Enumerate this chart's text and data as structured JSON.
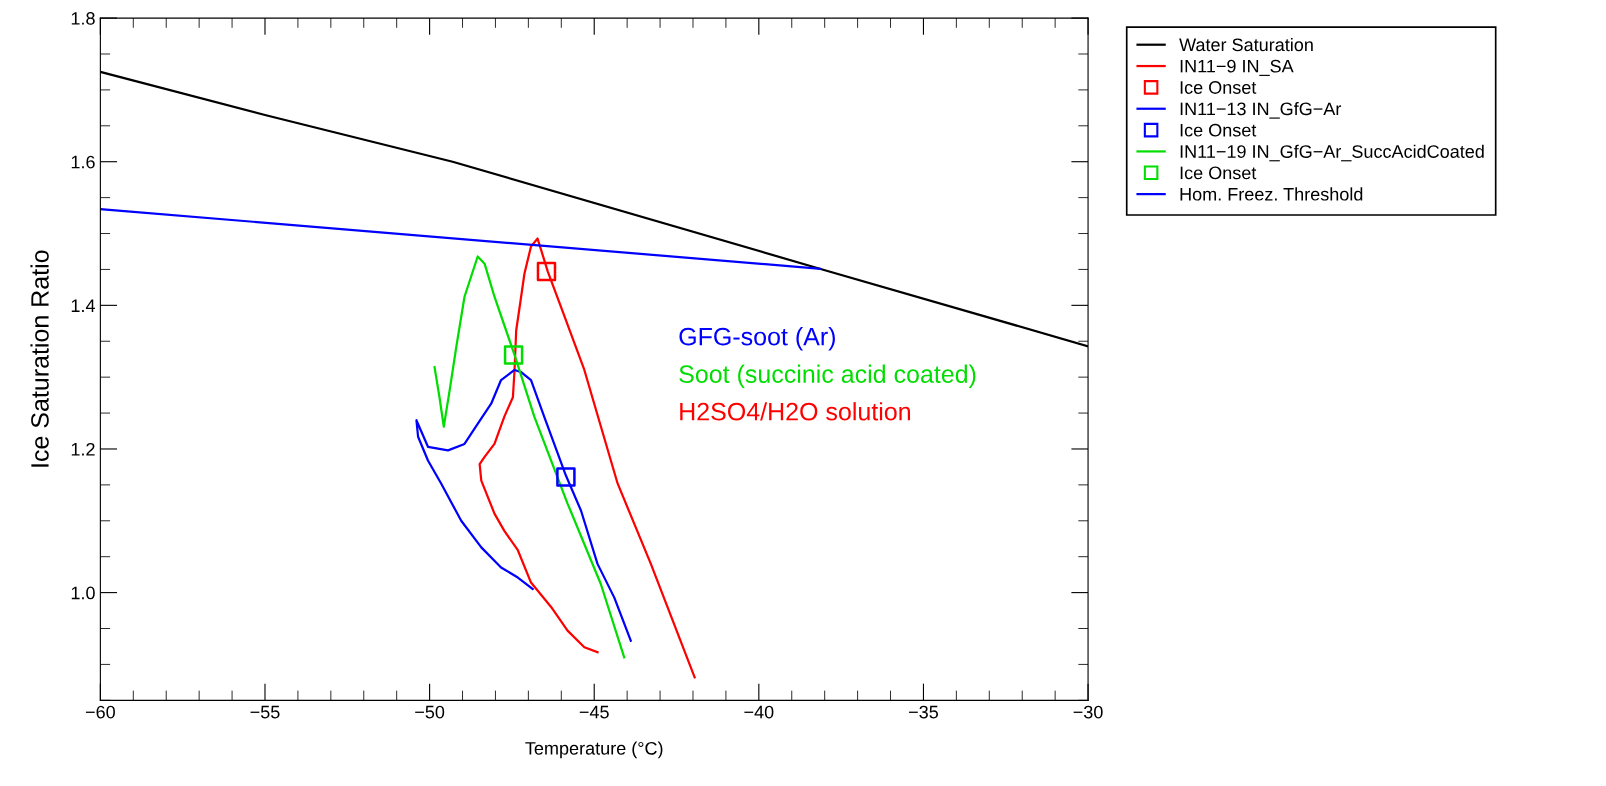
{
  "chart_data": {
    "type": "line",
    "xlabel": "Temperature (°C)",
    "ylabel": "Ice Saturation Ratio",
    "xlim": [
      -60,
      -30
    ],
    "xticks": [
      -60,
      -55,
      -50,
      -45,
      -40,
      -35,
      -30
    ],
    "ylim": [
      0.85,
      1.8
    ],
    "yticks": [
      {
        "value": 1.0,
        "label": "1.0"
      },
      {
        "value": 1.2,
        "label": "1.2"
      },
      {
        "value": 1.4,
        "label": "1.4"
      },
      {
        "value": 1.6,
        "label": "1.6"
      },
      {
        "value": 1.8,
        "label": "1.8"
      }
    ],
    "grid": false,
    "legend": "top right",
    "marker": "none",
    "line_style": "solid",
    "series": [
      {
        "name": "Water Saturation",
        "color": "#000000",
        "x": [
          -60,
          -55,
          -49.3,
          -38.15,
          -30
        ],
        "values": [
          1.725,
          1.665,
          1.6,
          1.451,
          1.343
        ]
      },
      {
        "name": "IN11−9 IN_SA",
        "color": "#ff0000",
        "x": [
          -44.9,
          -45.3,
          -45.81,
          -46.31,
          -46.92,
          -47.32,
          -47.73,
          -48.03,
          -48.43,
          -48.48,
          -48.33,
          -48.03,
          -47.73,
          -47.47,
          -47.42,
          -47.37,
          -47.22,
          -47.12,
          -46.92,
          -46.72,
          -46.41,
          -46.01,
          -45.3,
          -44.29,
          -43.28,
          -41.95
        ],
        "values": [
          0.917,
          0.924,
          0.947,
          0.98,
          1.014,
          1.059,
          1.086,
          1.11,
          1.156,
          1.179,
          1.189,
          1.207,
          1.245,
          1.272,
          1.31,
          1.365,
          1.412,
          1.444,
          1.482,
          1.493,
          1.447,
          1.398,
          1.31,
          1.152,
          1.04,
          0.882
        ]
      },
      {
        "name": "Ice Onset",
        "color": "#ff0000",
        "type": "scatter",
        "marker": "square",
        "x": [
          -46.45
        ],
        "values": [
          1.447
        ]
      },
      {
        "name": "IN11−13 IN_GfG−Ar",
        "color": "#0000ff",
        "x": [
          -43.89,
          -44.39,
          -44.9,
          -45.4,
          -45.86,
          -46.52,
          -46.92,
          -47.22,
          -47.42,
          -47.83,
          -48.13,
          -48.54,
          -48.94,
          -49.44,
          -50.05,
          -50.4,
          -50.35,
          -50.05,
          -49.65,
          -49.04,
          -48.43,
          -47.83,
          -47.32,
          -46.87
        ],
        "values": [
          0.933,
          0.993,
          1.04,
          1.114,
          1.163,
          1.245,
          1.296,
          1.307,
          1.31,
          1.296,
          1.263,
          1.235,
          1.207,
          1.198,
          1.203,
          1.24,
          1.217,
          1.184,
          1.152,
          1.1,
          1.063,
          1.035,
          1.021,
          1.005
        ]
      },
      {
        "name": "Ice Onset",
        "color": "#0000ff",
        "type": "scatter",
        "marker": "square",
        "x": [
          -45.86
        ],
        "values": [
          1.161
        ]
      },
      {
        "name": "IN11−19 IN_GfG−Ar_SuccAcidCoated",
        "color": "#00dd00",
        "x": [
          -49.85,
          -49.7,
          -49.57,
          -49.39,
          -49.19,
          -48.94,
          -48.54,
          -48.33,
          -48.03,
          -47.42,
          -46.82,
          -45.81,
          -44.8,
          -44.09
        ],
        "values": [
          1.314,
          1.272,
          1.231,
          1.282,
          1.342,
          1.412,
          1.468,
          1.458,
          1.412,
          1.331,
          1.245,
          1.124,
          1.012,
          0.91
        ]
      },
      {
        "name": "Ice Onset",
        "color": "#00dd00",
        "type": "scatter",
        "marker": "square",
        "x": [
          -47.45
        ],
        "values": [
          1.331
        ]
      },
      {
        "name": "Hom. Freez. Threshold",
        "color": "#0000ff",
        "x": [
          -60,
          -38.15
        ],
        "values": [
          1.534,
          1.451
        ]
      }
    ],
    "annotations": [
      "GFG-soot (Ar)",
      "Soot (succinic acid coated)",
      "H2SO4/H2O solution"
    ]
  }
}
